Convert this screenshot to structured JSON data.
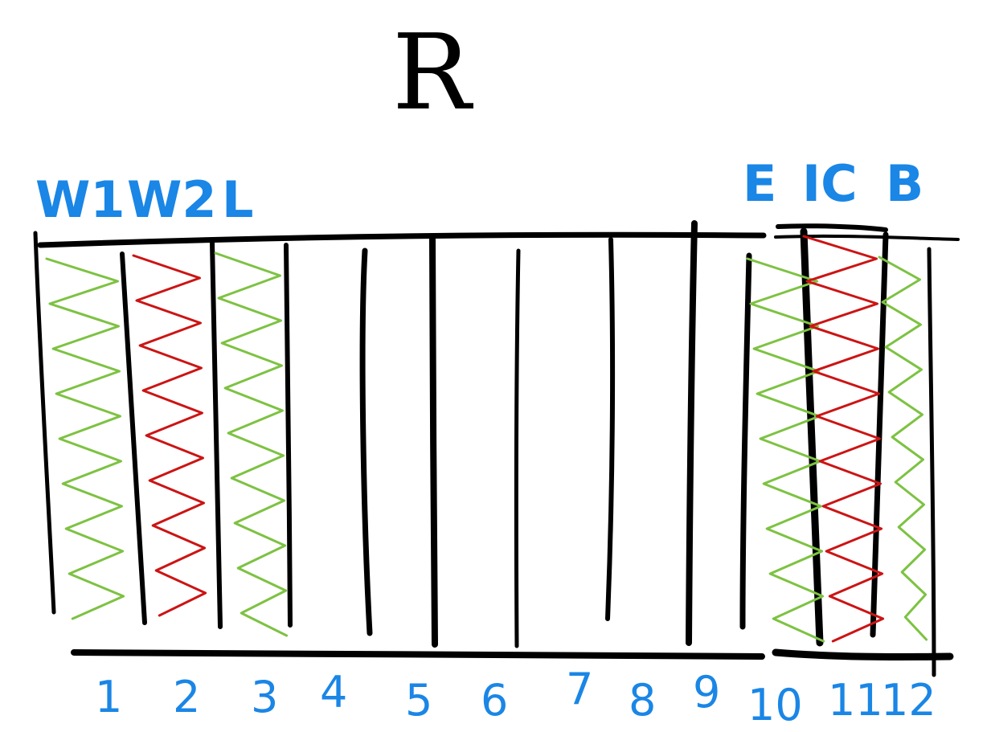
{
  "title": "R",
  "colors": {
    "label": "#1a86e6",
    "green": "#7dc242",
    "red": "#cc1414",
    "ink": "#000000"
  },
  "group_labels": [
    "W1",
    "W2",
    "L",
    "E",
    "IC",
    "B"
  ],
  "column_numbers": [
    "1",
    "2",
    "3",
    "4",
    "5",
    "6",
    "7",
    "8",
    "9",
    "10",
    "11",
    "12"
  ],
  "columns": [
    {
      "number": "1",
      "label": "W1",
      "fill": "green"
    },
    {
      "number": "2",
      "label": "W2",
      "fill": "red"
    },
    {
      "number": "3",
      "label": "L",
      "fill": "green"
    },
    {
      "number": "4",
      "label": "",
      "fill": "none"
    },
    {
      "number": "5",
      "label": "",
      "fill": "none"
    },
    {
      "number": "6",
      "label": "",
      "fill": "none"
    },
    {
      "number": "7",
      "label": "",
      "fill": "none"
    },
    {
      "number": "8",
      "label": "",
      "fill": "none"
    },
    {
      "number": "9",
      "label": "",
      "fill": "none"
    },
    {
      "number": "10",
      "label": "E",
      "fill": "green"
    },
    {
      "number": "11",
      "label": "IC",
      "fill": "red"
    },
    {
      "number": "12",
      "label": "B",
      "fill": "green"
    }
  ]
}
